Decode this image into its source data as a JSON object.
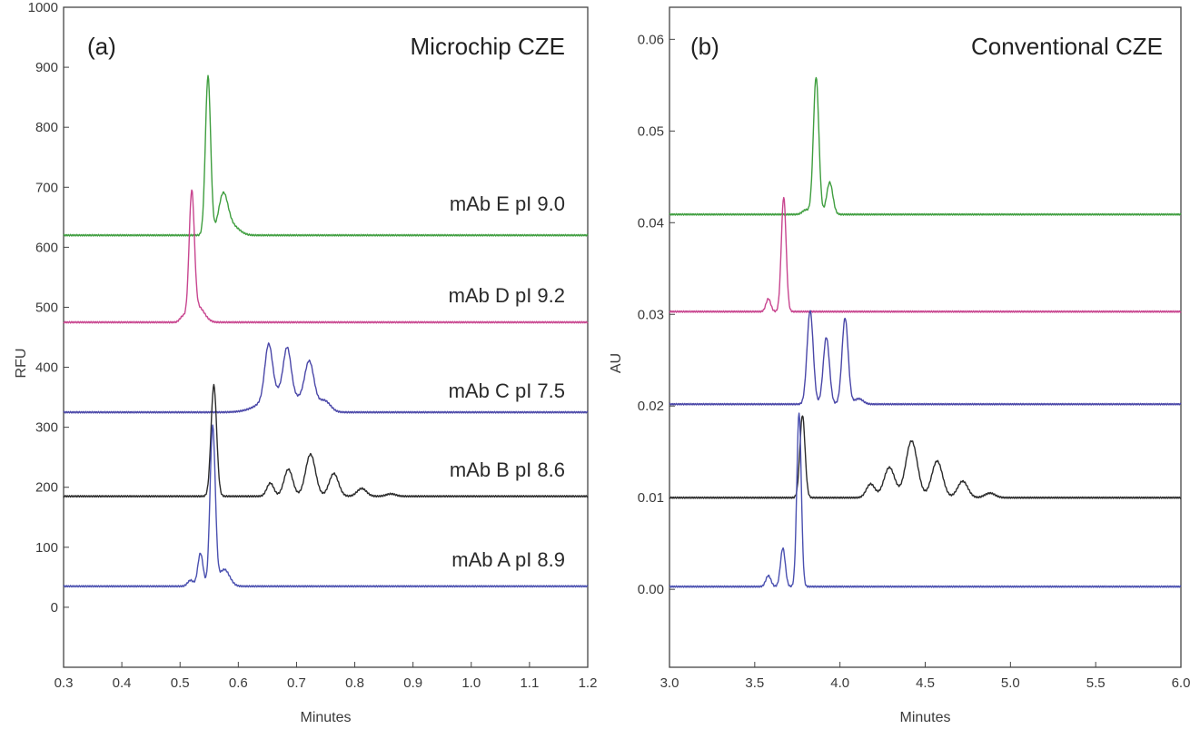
{
  "colors": {
    "green": "#3f9e3f",
    "pink": "#c8458f",
    "purple": "#4a47a8",
    "black": "#2b2b2b",
    "blue": "#4a50b0"
  },
  "chart_data": [
    {
      "type": "line",
      "panel_label": "(a)",
      "title": "Microchip CZE",
      "xlabel": "Minutes",
      "ylabel": "RFU",
      "xlim": [
        0.3,
        1.2
      ],
      "ylim": [
        -100,
        1000
      ],
      "x_ticks": [
        0.3,
        0.4,
        0.5,
        0.6,
        0.7,
        0.8,
        0.9,
        1.0,
        1.1,
        1.2
      ],
      "y_ticks": [
        0,
        100,
        200,
        300,
        400,
        500,
        600,
        700,
        800,
        900,
        1000
      ],
      "grid": false,
      "series": [
        {
          "name": "mAb E pI 9.0",
          "color": "green",
          "baseline": 620,
          "peaks": [
            [
              0.548,
              265,
              0.0045
            ],
            [
              0.574,
              65,
              0.008
            ],
            [
              0.59,
              15,
              0.012
            ]
          ]
        },
        {
          "name": "mAb D pI 9.2",
          "color": "pink",
          "baseline": 475,
          "peaks": [
            [
              0.52,
              208,
              0.0045
            ],
            [
              0.505,
              10,
              0.005
            ],
            [
              0.532,
              25,
              0.01
            ]
          ]
        },
        {
          "name": "mAb C pI 7.5",
          "color": "purple",
          "baseline": 325,
          "peaks": [
            [
              0.652,
              88,
              0.0065
            ],
            [
              0.684,
              75,
              0.0065
            ],
            [
              0.722,
              75,
              0.008
            ],
            [
              0.748,
              18,
              0.01
            ],
            [
              0.675,
              35,
              0.03
            ]
          ]
        },
        {
          "name": "mAb B pI 8.6",
          "color": "black",
          "baseline": 185,
          "peaks": [
            [
              0.558,
              185,
              0.0048
            ],
            [
              0.655,
              22,
              0.006
            ],
            [
              0.686,
              45,
              0.0075
            ],
            [
              0.724,
              70,
              0.0085
            ],
            [
              0.764,
              38,
              0.008
            ],
            [
              0.812,
              13,
              0.008
            ],
            [
              0.862,
              4,
              0.008
            ]
          ]
        },
        {
          "name": "mAb A pI 8.9",
          "color": "blue",
          "baseline": 35,
          "peaks": [
            [
              0.518,
              10,
              0.005
            ],
            [
              0.535,
              55,
              0.0045
            ],
            [
              0.556,
              265,
              0.0045
            ],
            [
              0.576,
              28,
              0.009
            ]
          ]
        }
      ]
    },
    {
      "type": "line",
      "panel_label": "(b)",
      "title": "Conventional CZE",
      "xlabel": "Minutes",
      "ylabel": "AU",
      "xlim": [
        3.0,
        6.0
      ],
      "ylim": [
        -0.0085,
        0.0635
      ],
      "x_ticks": [
        3.0,
        3.5,
        4.0,
        4.5,
        5.0,
        5.5,
        6.0
      ],
      "y_tick_labels": [
        "0.00",
        "0.01",
        "0.02",
        "0.03",
        "0.04",
        "0.05",
        "0.06"
      ],
      "grid": false,
      "series": [
        {
          "color": "green",
          "baseline": 0.0409,
          "peaks": [
            [
              3.86,
              0.015,
              0.016
            ],
            [
              3.94,
              0.0035,
              0.018
            ],
            [
              3.8,
              0.0005,
              0.02
            ]
          ]
        },
        {
          "color": "pink",
          "baseline": 0.0303,
          "peaks": [
            [
              3.67,
              0.0125,
              0.014
            ],
            [
              3.58,
              0.0014,
              0.014
            ]
          ]
        },
        {
          "color": "purple",
          "baseline": 0.0202,
          "peaks": [
            [
              3.825,
              0.0102,
              0.018
            ],
            [
              3.92,
              0.0073,
              0.018
            ],
            [
              4.03,
              0.0094,
              0.018
            ],
            [
              4.11,
              0.0006,
              0.025
            ]
          ]
        },
        {
          "color": "black",
          "baseline": 0.01,
          "peaks": [
            [
              3.78,
              0.009,
              0.015
            ],
            [
              4.18,
              0.0015,
              0.025
            ],
            [
              4.29,
              0.0033,
              0.032
            ],
            [
              4.42,
              0.0062,
              0.034
            ],
            [
              4.57,
              0.004,
              0.032
            ],
            [
              4.72,
              0.0018,
              0.03
            ],
            [
              4.88,
              0.0005,
              0.03
            ]
          ]
        },
        {
          "color": "blue",
          "baseline": 0.0003,
          "peaks": [
            [
              3.58,
              0.0012,
              0.015
            ],
            [
              3.665,
              0.0042,
              0.014
            ],
            [
              3.76,
              0.019,
              0.013
            ]
          ]
        }
      ]
    }
  ]
}
